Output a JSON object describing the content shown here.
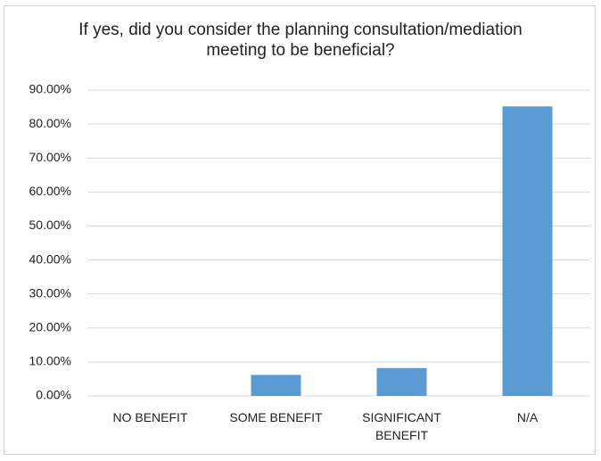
{
  "chart_data": {
    "type": "bar",
    "title": "If yes, did you consider the planning consultation/mediation meeting to be beneficial?",
    "categories": [
      "NO BENEFIT",
      "SOME BENEFIT",
      "SIGNIFICANT BENEFIT",
      "N/A"
    ],
    "values": [
      0,
      6.2,
      8.2,
      85.2
    ],
    "color": "#5b9bd5",
    "ylim": [
      0,
      90
    ],
    "yticks": [
      {
        "value": 0,
        "label": "0.00%"
      },
      {
        "value": 10,
        "label": "10.00%"
      },
      {
        "value": 20,
        "label": "20.00%"
      },
      {
        "value": 30,
        "label": "30.00%"
      },
      {
        "value": 40,
        "label": "40.00%"
      },
      {
        "value": 50,
        "label": "50.00%"
      },
      {
        "value": 60,
        "label": "60.00%"
      },
      {
        "value": 70,
        "label": "70.00%"
      },
      {
        "value": 80,
        "label": "80.00%"
      },
      {
        "value": 90,
        "label": "90.00%"
      }
    ],
    "grid": true
  }
}
